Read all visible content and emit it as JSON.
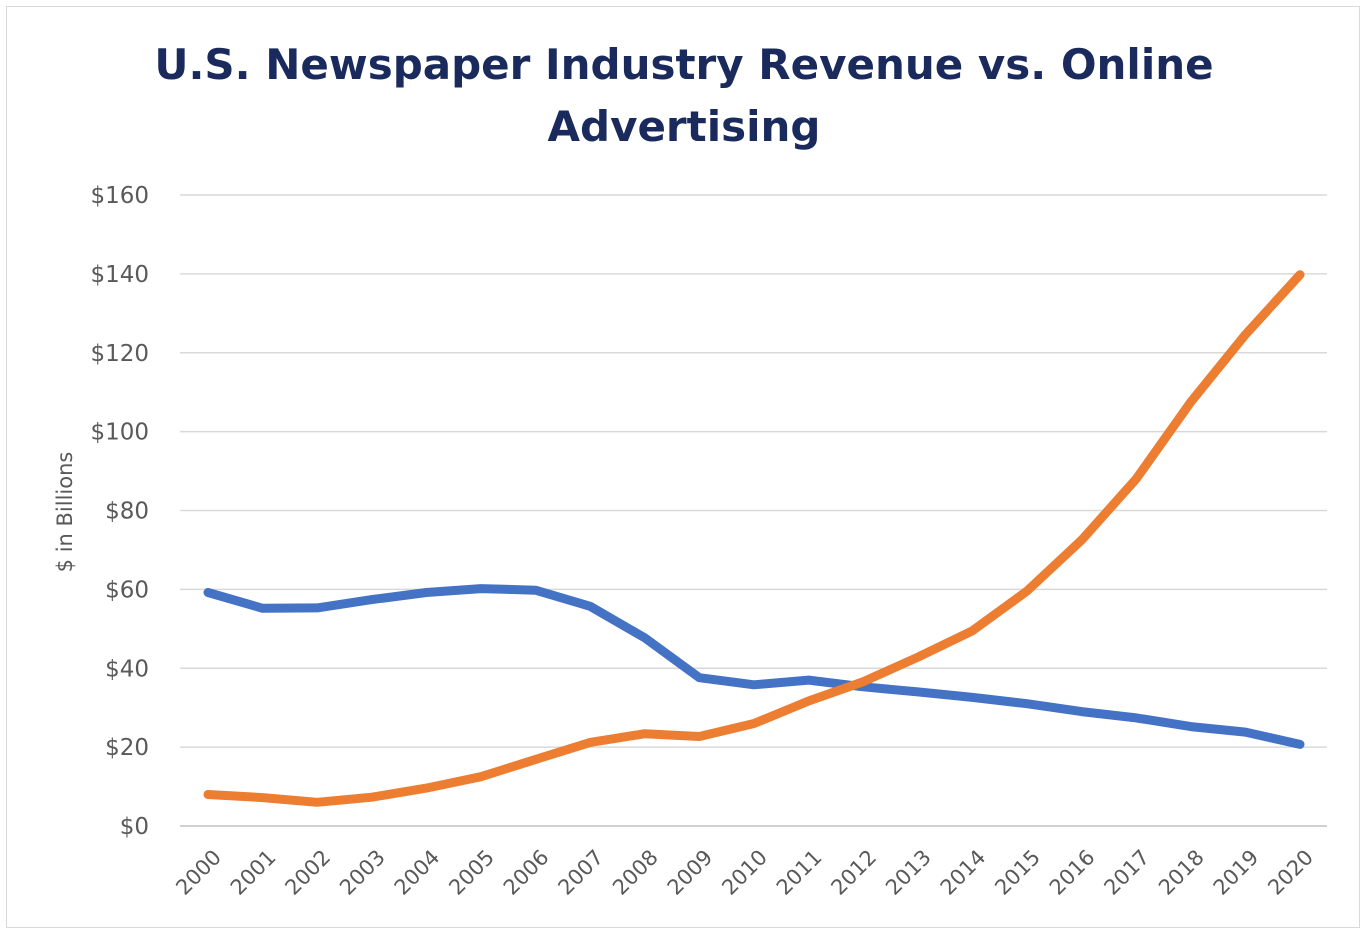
{
  "chart_data": {
    "type": "line",
    "title_lines": [
      "U.S. Newspaper Industry Revenue vs. Online",
      "Advertising"
    ],
    "ylabel": "$ in Billions",
    "xlabel": "",
    "x": [
      "2000",
      "2001",
      "2002",
      "2003",
      "2004",
      "2005",
      "2006",
      "2007",
      "2008",
      "2009",
      "2010",
      "2011",
      "2012",
      "2013",
      "2014",
      "2015",
      "2016",
      "2017",
      "2018",
      "2019",
      "2020"
    ],
    "ylim": [
      0,
      160
    ],
    "yticks": [
      0,
      20,
      40,
      60,
      80,
      100,
      120,
      140,
      160
    ],
    "ytick_labels": [
      "$0",
      "$20",
      "$40",
      "$60",
      "$80",
      "$100",
      "$120",
      "$140",
      "$160"
    ],
    "grid": true,
    "legend": "none",
    "series": [
      {
        "color": "#4472c4",
        "values": [
          59.2,
          55.2,
          55.3,
          57.4,
          59.2,
          60.2,
          59.8,
          55.7,
          47.7,
          37.6,
          35.8,
          37.0,
          35.3,
          34.0,
          32.6,
          31.0,
          29.0,
          27.4,
          25.2,
          23.8,
          20.7
        ]
      },
      {
        "color": "#ed7d31",
        "values": [
          8.0,
          7.2,
          6.0,
          7.3,
          9.6,
          12.5,
          16.9,
          21.2,
          23.4,
          22.7,
          26.0,
          31.7,
          36.6,
          42.8,
          49.5,
          59.6,
          72.5,
          88.0,
          107.5,
          124.6,
          139.8
        ]
      }
    ]
  }
}
